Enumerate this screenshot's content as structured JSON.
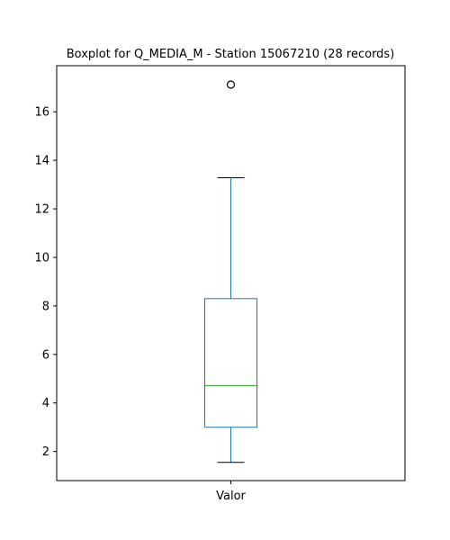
{
  "chart_data": {
    "type": "boxplot",
    "title": "Boxplot for Q_MEDIA_M - Station 15067210 (28 records)",
    "xlabel": "",
    "ylabel": "",
    "categories": [
      "Valor"
    ],
    "boxes": [
      {
        "name": "Valor",
        "whisker_low": 1.55,
        "q1": 3.0,
        "median": 4.72,
        "q3": 8.3,
        "whisker_high": 13.28,
        "outliers": [
          17.12
        ]
      }
    ],
    "ylim": [
      0.8,
      17.9
    ],
    "yticks": [
      2,
      4,
      6,
      8,
      10,
      12,
      14,
      16
    ],
    "grid": false,
    "colors": {
      "box": "#1f77b4",
      "median": "#2ca02c",
      "whisker": "#1f77b4",
      "cap": "#000000",
      "outlier_edge": "#000000"
    }
  }
}
